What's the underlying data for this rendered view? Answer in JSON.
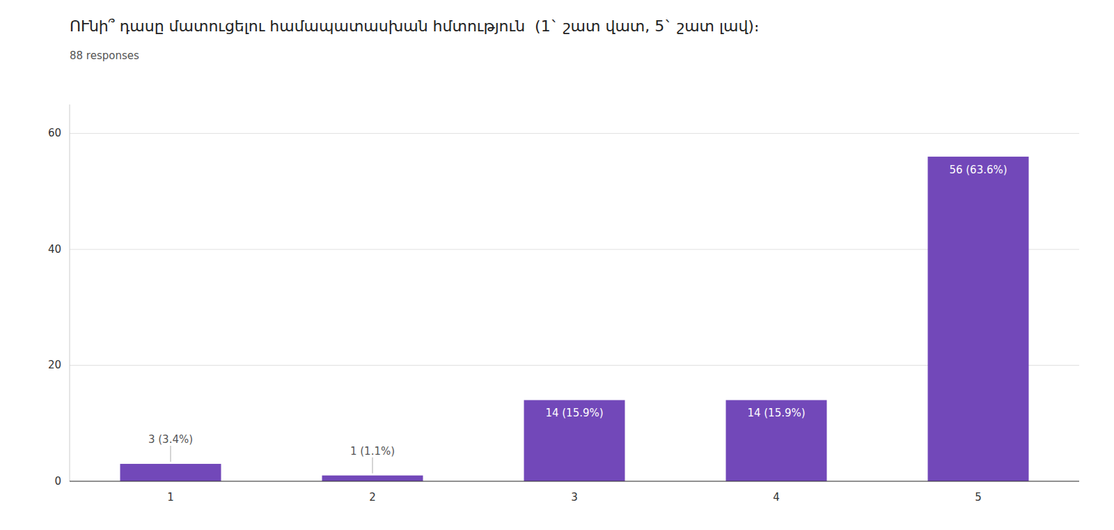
{
  "chart_data": {
    "type": "bar",
    "title": "ՈՒնի՞ դասը մատուցելու համապատասխան հմտություն  (1` շատ վատ, 5` շատ լավ)։",
    "subtitle": "88 responses",
    "categories": [
      "1",
      "2",
      "3",
      "4",
      "5"
    ],
    "values": [
      3,
      1,
      14,
      14,
      56
    ],
    "value_labels": [
      "3 (3.4%)",
      "1 (1.1%)",
      "14 (15.9%)",
      "14 (15.9%)",
      "56 (63.6%)"
    ],
    "color": "#7248b9",
    "ylim": [
      0,
      65
    ],
    "yticks": [
      0,
      20,
      40,
      60
    ],
    "grid": true,
    "data_labels": true
  }
}
